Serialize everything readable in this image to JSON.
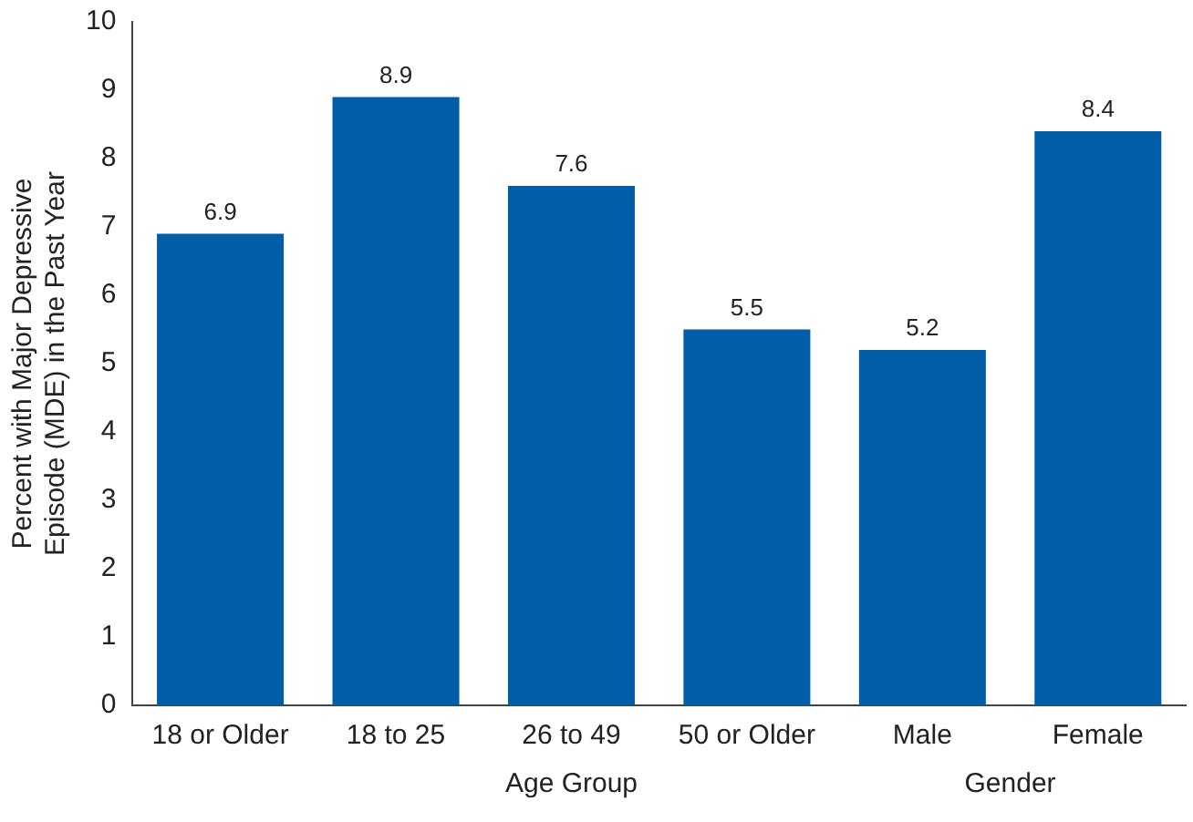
{
  "chart_data": {
    "type": "bar",
    "ylabel": "Percent with Major Depressive Episode (MDE) in the Past Year",
    "categories": [
      "18 or Older",
      "18 to 25",
      "26 to 49",
      "50 or Older",
      "Male",
      "Female"
    ],
    "values": [
      6.9,
      8.9,
      7.6,
      5.5,
      5.2,
      8.4
    ],
    "color": "#005ea8",
    "ylim": [
      0,
      10
    ],
    "yticks": [
      0,
      1,
      2,
      3,
      4,
      5,
      6,
      7,
      8,
      9,
      10
    ],
    "grid": false,
    "legend": false,
    "data_labels": true,
    "annotations": [
      "Age Group",
      "Gender"
    ]
  }
}
